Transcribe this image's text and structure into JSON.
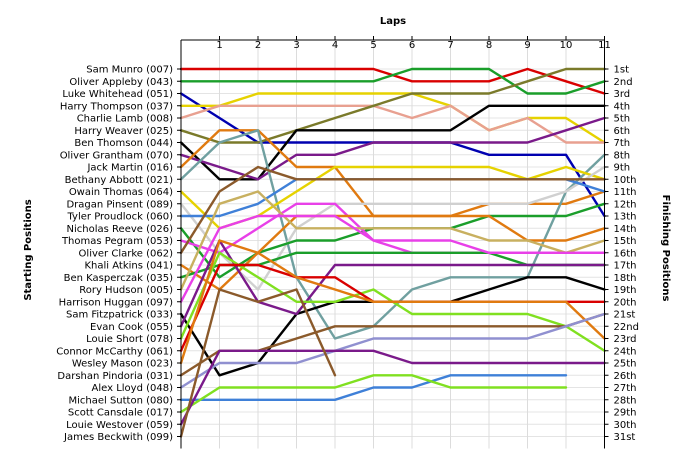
{
  "chart_data": {
    "type": "line",
    "title": "",
    "xlabel": "Laps",
    "ylabel_left": "Starting Positions",
    "ylabel_right": "Finishing Positions",
    "laps": [
      1,
      2,
      3,
      4,
      5,
      6,
      7,
      8,
      9,
      10,
      11
    ],
    "xlim": [
      0,
      11
    ],
    "ylim": [
      1,
      31
    ],
    "drivers": [
      "Sam Munro (007)",
      "Oliver Appleby (043)",
      "Luke Whitehead (051)",
      "Harry Thompson (037)",
      "Charlie Lamb (008)",
      "Harry Weaver (025)",
      "Ben Thomson (044)",
      "Oliver Grantham (070)",
      "Jack Martin (016)",
      "Bethany Abbott (021)",
      "Owain Thomas (064)",
      "Dragan Pinsent (089)",
      "Tyler Proudlock (060)",
      "Nicholas Reeve (026)",
      "Thomas Pegram (053)",
      "Oliver Clarke (062)",
      "Khali Atkins (041)",
      "Ben Kasperczak (035)",
      "Rory Hudson (005)",
      "Harrison Huggan (097)",
      "Sam Fitzpatrick (033)",
      "Evan Cook (055)",
      "Louie Short (078)",
      "Connor McCarthy (061)",
      "Wesley Mason (023)",
      "Darshan Pindoria (031)",
      "Alex Lloyd (048)",
      "Michael Sutton (080)",
      "Scott Cansdale (017)",
      "Louie Westover (059)",
      "James Beckwith (099)"
    ],
    "finishing_labels": [
      "1st",
      "2nd",
      "3rd",
      "4th",
      "5th",
      "6th",
      "7th",
      "8th",
      "9th",
      "10th",
      "11th",
      "12th",
      "13th",
      "14th",
      "15th",
      "16th",
      "17th",
      "18th",
      "19th",
      "20th",
      "21st",
      "22nd",
      "23rd",
      "24th",
      "25th",
      "26th",
      "27th",
      "28th",
      "29th",
      "30th",
      "31st"
    ],
    "grid": true,
    "series": [
      {
        "start": 1,
        "color": "#d90000",
        "positions": [
          1,
          1,
          1,
          1,
          1,
          2,
          2,
          2,
          1,
          2,
          3
        ]
      },
      {
        "start": 2,
        "color": "#1a9e2a",
        "positions": [
          2,
          2,
          2,
          2,
          2,
          1,
          1,
          1,
          3,
          3,
          2
        ]
      },
      {
        "start": 3,
        "color": "#0000b0",
        "positions": [
          5,
          7,
          7,
          7,
          7,
          7,
          7,
          8,
          8,
          8,
          13
        ]
      },
      {
        "start": 4,
        "color": "#e6d200",
        "positions": [
          4,
          3,
          3,
          3,
          3,
          3,
          4,
          6,
          5,
          5,
          7
        ]
      },
      {
        "start": 5,
        "color": "#e8a090",
        "positions": [
          4,
          4,
          4,
          4,
          4,
          5,
          4,
          6,
          5,
          7,
          7
        ]
      },
      {
        "start": 6,
        "color": "#7a7a2a",
        "positions": [
          7,
          7,
          6,
          5,
          4,
          3,
          3,
          3,
          2,
          1,
          1
        ]
      },
      {
        "start": 7,
        "color": "#000000",
        "positions": [
          10,
          10,
          6,
          6,
          6,
          6,
          6,
          4,
          4,
          4,
          4
        ]
      },
      {
        "start": 8,
        "color": "#7a1a8a",
        "positions": [
          9,
          10,
          8,
          8,
          7,
          7,
          7,
          7,
          7,
          6,
          5
        ]
      },
      {
        "start": 9,
        "color": "#e07a10",
        "positions": [
          6,
          6,
          9,
          9,
          13,
          13,
          13,
          12,
          12,
          12,
          11
        ]
      },
      {
        "start": 10,
        "color": "#70a0a0",
        "positions": [
          7,
          6,
          18,
          23,
          22,
          19,
          18,
          18,
          18,
          11,
          8
        ]
      },
      {
        "start": 11,
        "color": "#e6d200",
        "positions": [
          14,
          13,
          11,
          9,
          9,
          9,
          9,
          9,
          10,
          9,
          10
        ]
      },
      {
        "start": 12,
        "color": "#d0d0d0",
        "positions": [
          16,
          19,
          14,
          12,
          12,
          12,
          12,
          12,
          12,
          11,
          9
        ]
      },
      {
        "start": 13,
        "color": "#3f80d8",
        "positions": [
          13,
          12,
          10,
          10,
          10,
          10,
          10,
          10,
          10,
          10,
          11
        ]
      },
      {
        "start": 14,
        "color": "#1a9e2a",
        "positions": [
          18,
          16,
          15,
          15,
          14,
          14,
          14,
          13,
          13,
          13,
          12
        ]
      },
      {
        "start": 15,
        "color": "#e840e8",
        "positions": [
          16,
          14,
          12,
          12,
          15,
          16,
          16,
          16,
          16,
          16,
          16
        ]
      },
      {
        "start": 16,
        "color": "#8b5a2b",
        "positions": [
          11,
          9,
          10,
          10,
          10,
          10,
          10,
          10,
          10,
          10,
          10
        ]
      },
      {
        "start": 17,
        "color": "#e07a10",
        "positions": [
          19,
          16,
          13,
          13,
          13,
          13,
          13,
          13,
          15,
          15,
          14
        ]
      },
      {
        "start": 18,
        "color": "#1a9e2a",
        "positions": [
          17,
          17,
          16,
          16,
          16,
          16,
          16,
          16,
          17,
          17,
          17
        ]
      },
      {
        "start": 19,
        "color": "#c8b060",
        "positions": [
          12,
          11,
          14,
          14,
          14,
          14,
          14,
          15,
          15,
          16,
          15
        ]
      },
      {
        "start": 20,
        "color": "#e840e8",
        "positions": [
          14,
          13,
          13,
          13,
          15,
          15,
          15,
          16,
          16,
          16,
          16
        ]
      },
      {
        "start": 21,
        "color": "#000000",
        "positions": [
          26,
          25,
          21,
          20,
          20,
          20,
          20,
          19,
          18,
          18,
          19
        ]
      },
      {
        "start": 22,
        "color": "#7a1a8a",
        "positions": [
          15,
          20,
          21,
          17,
          17,
          17,
          17,
          17,
          17,
          17,
          17
        ]
      },
      {
        "start": 23,
        "color": "#80e020",
        "positions": [
          16,
          18,
          20,
          20,
          19,
          21,
          21,
          21,
          21,
          22,
          24
        ]
      },
      {
        "start": 24,
        "color": "#d90000",
        "positions": [
          17,
          17,
          18,
          18,
          20,
          20,
          20,
          20,
          20,
          20,
          20
        ]
      },
      {
        "start": 25,
        "color": "#e07a10",
        "positions": [
          15,
          16,
          18,
          19,
          20,
          20,
          20,
          20,
          20,
          20,
          23
        ]
      },
      {
        "start": 26,
        "color": "#8b5a2b",
        "positions": [
          24,
          24,
          23,
          22,
          22,
          22,
          22,
          22,
          22,
          22,
          21
        ]
      },
      {
        "start": 27,
        "color": "#9090d0",
        "positions": [
          25,
          25,
          25,
          24,
          23,
          23,
          23,
          23,
          23,
          22,
          21
        ]
      },
      {
        "start": 28,
        "color": "#3f80d8",
        "positions": [
          28,
          28,
          28,
          28,
          27,
          27,
          26,
          26,
          26,
          26
        ]
      },
      {
        "start": 29,
        "color": "#80e020",
        "positions": [
          27,
          27,
          27,
          27,
          26,
          26,
          27,
          27,
          27,
          27
        ]
      },
      {
        "start": 30,
        "color": "#7a1a8a",
        "positions": [
          24,
          24,
          24,
          24,
          24,
          25,
          25,
          25,
          25,
          25,
          25
        ]
      },
      {
        "start": 31,
        "color": "#8b5a2b",
        "positions": [
          19,
          20,
          19,
          26
        ]
      }
    ]
  }
}
